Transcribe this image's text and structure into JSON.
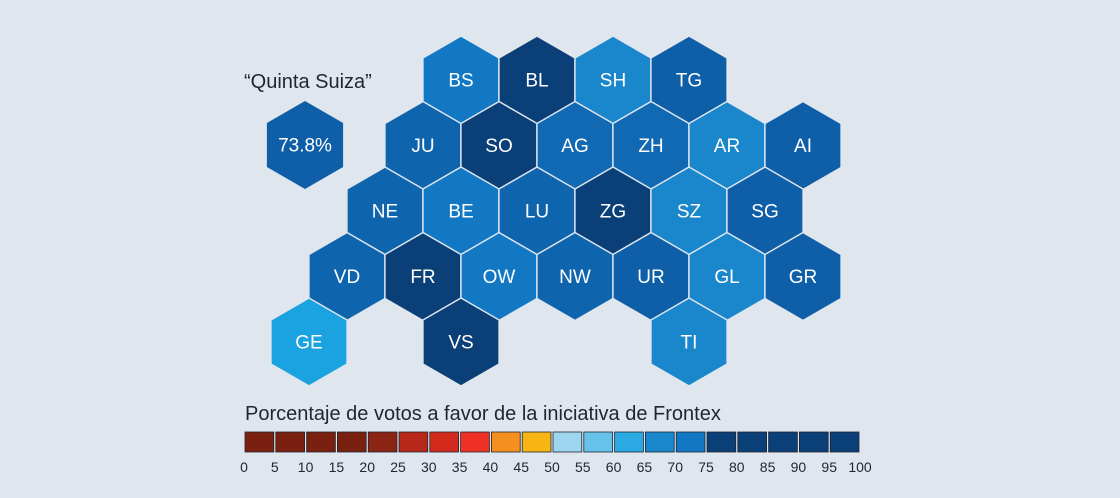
{
  "map_title": "“Quinta Suiza”",
  "fifth_switzerland": {
    "value_label": "73.8%",
    "color": "#0f5ea8"
  },
  "cantons": [
    {
      "code": "BS",
      "col": 4,
      "row": 0,
      "color": "#1378c4"
    },
    {
      "code": "BL",
      "col": 6,
      "row": 0,
      "color": "#0b3f78"
    },
    {
      "code": "SH",
      "col": 8,
      "row": 0,
      "color": "#1a86cc"
    },
    {
      "code": "TG",
      "col": 10,
      "row": 0,
      "color": "#0f5ea8"
    },
    {
      "code": "JU",
      "col": 3,
      "row": 1,
      "color": "#0f64ae"
    },
    {
      "code": "SO",
      "col": 5,
      "row": 1,
      "color": "#0b3f78"
    },
    {
      "code": "AG",
      "col": 7,
      "row": 1,
      "color": "#1069b2"
    },
    {
      "code": "ZH",
      "col": 9,
      "row": 1,
      "color": "#1069b2"
    },
    {
      "code": "AR",
      "col": 11,
      "row": 1,
      "color": "#1a86cc"
    },
    {
      "code": "AI",
      "col": 13,
      "row": 1,
      "color": "#0f5ea8"
    },
    {
      "code": "NE",
      "col": 2,
      "row": 2,
      "color": "#0f64ae"
    },
    {
      "code": "BE",
      "col": 4,
      "row": 2,
      "color": "#1378c4"
    },
    {
      "code": "LU",
      "col": 6,
      "row": 2,
      "color": "#0f64ae"
    },
    {
      "code": "ZG",
      "col": 8,
      "row": 2,
      "color": "#0b3f78"
    },
    {
      "code": "SZ",
      "col": 10,
      "row": 2,
      "color": "#1a86cc"
    },
    {
      "code": "SG",
      "col": 12,
      "row": 2,
      "color": "#0f5ea8"
    },
    {
      "code": "VD",
      "col": 1,
      "row": 3,
      "color": "#0f64ae"
    },
    {
      "code": "FR",
      "col": 3,
      "row": 3,
      "color": "#0b3f78"
    },
    {
      "code": "OW",
      "col": 5,
      "row": 3,
      "color": "#1378c4"
    },
    {
      "code": "NW",
      "col": 7,
      "row": 3,
      "color": "#0f64ae"
    },
    {
      "code": "UR",
      "col": 9,
      "row": 3,
      "color": "#0f5ea8"
    },
    {
      "code": "GL",
      "col": 11,
      "row": 3,
      "color": "#1a86cc"
    },
    {
      "code": "GR",
      "col": 13,
      "row": 3,
      "color": "#0f5ea8"
    },
    {
      "code": "GE",
      "col": 0,
      "row": 4,
      "color": "#1aa3e0"
    },
    {
      "code": "VS",
      "col": 4,
      "row": 4,
      "color": "#0b3f78"
    },
    {
      "code": "TI",
      "col": 10,
      "row": 4,
      "color": "#1a86cc"
    }
  ],
  "legend": {
    "title": "Porcentaje de votos a favor de la iniciativa de Frontex",
    "ticks": [
      "0",
      "5",
      "10",
      "15",
      "20",
      "25",
      "30",
      "35",
      "40",
      "45",
      "50",
      "55",
      "60",
      "65",
      "70",
      "75",
      "80",
      "85",
      "90",
      "95",
      "100"
    ],
    "colors": [
      "#7a2010",
      "#7a2010",
      "#7a2010",
      "#7a2010",
      "#8c2414",
      "#b8281a",
      "#d42a1e",
      "#ef3024",
      "#f5901e",
      "#f7b514",
      "#9fd6ef",
      "#66c2e8",
      "#2aa9e2",
      "#1a86cc",
      "#1378c4",
      "#0b3f78",
      "#0b3f78",
      "#0b3f78",
      "#0b3f78",
      "#0b3f78"
    ]
  }
}
